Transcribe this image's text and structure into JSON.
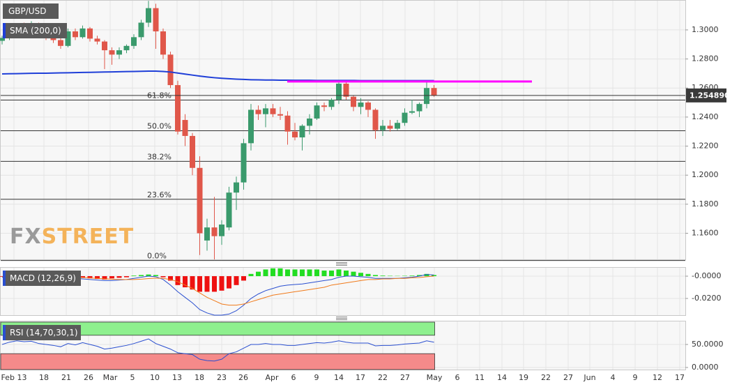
{
  "chart_data": [
    {
      "type": "candlestick",
      "title": "GBP/USD",
      "up_color": "#3a9a6c",
      "down_color": "#e0574a",
      "candles": {
        "open": [
          1.2925,
          1.2945,
          1.2975,
          1.301,
          1.3,
          1.304,
          1.297,
          1.295,
          1.293,
          1.289,
          1.299,
          1.295,
          1.301,
          1.294,
          1.292,
          1.286,
          1.283,
          1.286,
          1.289,
          1.295,
          1.305,
          1.315,
          1.299,
          1.283,
          1.262,
          1.238,
          1.227,
          1.205,
          1.155,
          1.164,
          1.158,
          1.164,
          1.188,
          1.195,
          1.222,
          1.245,
          1.242,
          1.246,
          1.242,
          1.241,
          1.23,
          1.226,
          1.234,
          1.239,
          1.248,
          1.247,
          1.252,
          1.263,
          1.254,
          1.247,
          1.25,
          1.245,
          1.231,
          1.234,
          1.232,
          1.236,
          1.243,
          1.244,
          1.249,
          1.26
        ],
        "high": [
          1.296,
          1.299,
          1.303,
          1.305,
          1.306,
          1.305,
          1.3,
          1.299,
          1.296,
          1.301,
          1.301,
          1.303,
          1.302,
          1.296,
          1.293,
          1.288,
          1.288,
          1.29,
          1.297,
          1.307,
          1.32,
          1.318,
          1.301,
          1.285,
          1.265,
          1.242,
          1.229,
          1.213,
          1.17,
          1.185,
          1.169,
          1.192,
          1.199,
          1.225,
          1.249,
          1.248,
          1.249,
          1.249,
          1.247,
          1.244,
          1.236,
          1.235,
          1.242,
          1.25,
          1.25,
          1.253,
          1.265,
          1.265,
          1.255,
          1.253,
          1.251,
          1.246,
          1.238,
          1.238,
          1.238,
          1.246,
          1.252,
          1.25,
          1.264,
          1.262
        ],
        "low": [
          1.29,
          1.293,
          1.296,
          1.299,
          1.298,
          1.296,
          1.293,
          1.291,
          1.287,
          1.288,
          1.293,
          1.294,
          1.292,
          1.29,
          1.273,
          1.276,
          1.28,
          1.284,
          1.287,
          1.293,
          1.302,
          1.287,
          1.28,
          1.26,
          1.228,
          1.22,
          1.2,
          1.145,
          1.148,
          1.142,
          1.152,
          1.162,
          1.176,
          1.19,
          1.217,
          1.238,
          1.233,
          1.24,
          1.238,
          1.221,
          1.224,
          1.217,
          1.228,
          1.238,
          1.244,
          1.245,
          1.249,
          1.252,
          1.244,
          1.242,
          1.24,
          1.225,
          1.227,
          1.23,
          1.231,
          1.234,
          1.242,
          1.24,
          1.246,
          1.254
        ],
        "close": [
          1.2945,
          1.2975,
          1.301,
          1.3,
          1.304,
          1.297,
          1.295,
          1.293,
          1.289,
          1.299,
          1.295,
          1.301,
          1.294,
          1.292,
          1.286,
          1.283,
          1.286,
          1.289,
          1.295,
          1.305,
          1.315,
          1.299,
          1.283,
          1.262,
          1.23,
          1.227,
          1.205,
          1.16,
          1.164,
          1.158,
          1.166,
          1.188,
          1.195,
          1.222,
          1.245,
          1.242,
          1.246,
          1.242,
          1.241,
          1.23,
          1.226,
          1.234,
          1.239,
          1.248,
          1.247,
          1.252,
          1.263,
          1.254,
          1.247,
          1.25,
          1.245,
          1.231,
          1.234,
          1.232,
          1.236,
          1.243,
          1.244,
          1.249,
          1.26,
          1.255
        ]
      },
      "sma": {
        "name": "SMA (200,0)",
        "color": "#1f3fd8",
        "values": [
          1.2697,
          1.2698,
          1.2699,
          1.27,
          1.2701,
          1.2702,
          1.2702,
          1.2703,
          1.2704,
          1.2705,
          1.2706,
          1.2707,
          1.2708,
          1.2709,
          1.271,
          1.2711,
          1.2712,
          1.2713,
          1.2714,
          1.2715,
          1.2716,
          1.2716,
          1.2714,
          1.271,
          1.2703,
          1.2696,
          1.2689,
          1.2682,
          1.2676,
          1.2671,
          1.2667,
          1.2664,
          1.2661,
          1.2659,
          1.2657,
          1.2656,
          1.2655,
          1.2655,
          1.2654,
          1.2654,
          1.2653,
          1.2653,
          1.2653,
          1.2652,
          1.2652,
          1.2652,
          1.2652,
          1.2652,
          1.2652,
          1.2651,
          1.2651,
          1.2651,
          1.2651,
          1.2651,
          1.2651,
          1.2651,
          1.2651,
          1.2651,
          1.2651,
          1.2651
        ]
      },
      "fibonacci": [
        {
          "label": "61.8%",
          "value": 1.2517
        },
        {
          "label": "50.0%",
          "value": 1.2306
        },
        {
          "label": "38.2%",
          "value": 1.2095
        },
        {
          "label": "23.6%",
          "value": 1.1834
        },
        {
          "label": "0.0%",
          "value": 1.1412
        }
      ],
      "resistance": {
        "value": 1.2645,
        "color": "#ff00ff"
      },
      "last_price": {
        "value": 1.25489,
        "label": "1.254890"
      },
      "ylim": [
        1.142,
        1.3206
      ],
      "yticks": [
        {
          "value": 1.3,
          "label": "1.3000"
        },
        {
          "value": 1.28,
          "label": "1.2800"
        },
        {
          "value": 1.26,
          "label": "1.2600"
        },
        {
          "value": 1.24,
          "label": "1.2400"
        },
        {
          "value": 1.22,
          "label": "1.2200"
        },
        {
          "value": 1.2,
          "label": "1.2000"
        },
        {
          "value": 1.18,
          "label": "1.1800"
        },
        {
          "value": 1.16,
          "label": "1.1600"
        }
      ],
      "grid": true,
      "watermark": [
        "FX",
        "STREET"
      ]
    },
    {
      "type": "macd",
      "title": "MACD (12,26,9)",
      "histogram": {
        "up_color": "#22dd22",
        "down_color": "#ee1111",
        "values": [
          -0.0005,
          -0.0008,
          -0.001,
          -0.0012,
          -0.0012,
          -0.0012,
          -0.001,
          -0.0008,
          -0.0006,
          -0.0004,
          -0.001,
          -0.0015,
          -0.002,
          -0.0025,
          -0.003,
          -0.002,
          -0.0015,
          -0.001,
          0.0005,
          0.001,
          0.0015,
          0.001,
          -0.001,
          -0.004,
          -0.008,
          -0.01,
          -0.012,
          -0.014,
          -0.014,
          -0.014,
          -0.013,
          -0.011,
          -0.008,
          -0.004,
          0.002,
          0.004,
          0.006,
          0.007,
          0.007,
          0.006,
          0.006,
          0.006,
          0.006,
          0.006,
          0.005,
          0.005,
          0.006,
          0.005,
          0.004,
          0.003,
          0.002,
          0.001,
          0.0005,
          0.0003,
          0.0002,
          0.0003,
          0.0005,
          0.001,
          0.002,
          0.001
        ]
      },
      "series": [
        {
          "color": "#2a4fd0",
          "values": [
            -0.001,
            -0.001,
            -0.0005,
            0,
            0.0005,
            0,
            -0.0005,
            -0.001,
            -0.0015,
            -0.002,
            -0.002,
            -0.0025,
            -0.003,
            -0.0035,
            -0.004,
            -0.004,
            -0.0035,
            -0.003,
            -0.002,
            -0.001,
            0,
            -0.0005,
            -0.003,
            -0.008,
            -0.014,
            -0.019,
            -0.024,
            -0.03,
            -0.033,
            -0.035,
            -0.035,
            -0.034,
            -0.031,
            -0.026,
            -0.02,
            -0.016,
            -0.013,
            -0.011,
            -0.009,
            -0.008,
            -0.0075,
            -0.007,
            -0.006,
            -0.005,
            -0.004,
            -0.003,
            -0.001,
            0,
            0,
            -0.0005,
            -0.001,
            -0.002,
            -0.002,
            -0.002,
            -0.002,
            -0.0015,
            -0.001,
            0,
            0.0015,
            0.001
          ]
        },
        {
          "color": "#f07a1a",
          "values": [
            -0.0005,
            -0.0007,
            -0.0007,
            -0.0006,
            -0.0004,
            -0.0003,
            -0.0003,
            -0.0004,
            -0.0006,
            -0.0008,
            -0.001,
            -0.0013,
            -0.0016,
            -0.002,
            -0.0024,
            -0.0027,
            -0.003,
            -0.003,
            -0.003,
            -0.0027,
            -0.0022,
            -0.0018,
            -0.002,
            -0.003,
            -0.005,
            -0.008,
            -0.011,
            -0.015,
            -0.019,
            -0.022,
            -0.025,
            -0.026,
            -0.026,
            -0.025,
            -0.023,
            -0.021,
            -0.019,
            -0.017,
            -0.016,
            -0.015,
            -0.014,
            -0.013,
            -0.012,
            -0.011,
            -0.01,
            -0.008,
            -0.007,
            -0.006,
            -0.005,
            -0.004,
            -0.003,
            -0.003,
            -0.0025,
            -0.0025,
            -0.002,
            -0.002,
            -0.0015,
            -0.0012,
            -0.0005,
            0
          ]
        }
      ],
      "ylim": [
        -0.035,
        0.0069
      ],
      "yticks": [
        {
          "value": 0,
          "label": "-0.0000"
        },
        {
          "value": -0.02,
          "label": "-0.0200"
        }
      ]
    },
    {
      "type": "rsi",
      "title": "RSI (14,70,30,1)",
      "color": "#2a4fd0",
      "values": [
        50,
        55,
        58,
        56,
        57,
        52,
        50,
        48,
        45,
        52,
        49,
        54,
        50,
        46,
        40,
        42,
        45,
        48,
        52,
        57,
        62,
        52,
        46,
        40,
        32,
        30,
        28,
        18,
        15,
        14,
        18,
        30,
        34,
        42,
        50,
        50,
        52,
        50,
        50,
        48,
        48,
        50,
        52,
        54,
        53,
        55,
        58,
        55,
        53,
        53,
        53,
        47,
        48,
        48,
        49,
        51,
        52,
        53,
        58,
        55
      ],
      "overbought": 70,
      "oversold": 30,
      "overbought_color": "#8ef08e",
      "oversold_color": "#f58a8a",
      "ylim": [
        0,
        100
      ],
      "yticks": [
        {
          "value": 50,
          "label": "50.0000"
        },
        {
          "value": 0,
          "label": "0.0000"
        }
      ]
    }
  ],
  "x_axis": {
    "labels": [
      "Feb 13",
      "18",
      "21",
      "26",
      "Mar",
      "5",
      "10",
      "13",
      "18",
      "23",
      "26",
      "Apr",
      "6",
      "9",
      "14",
      "17",
      "22",
      "27",
      "May",
      "6",
      "11",
      "14",
      "19",
      "22",
      "27",
      "Jun",
      "4",
      "9",
      "12",
      "17"
    ]
  }
}
